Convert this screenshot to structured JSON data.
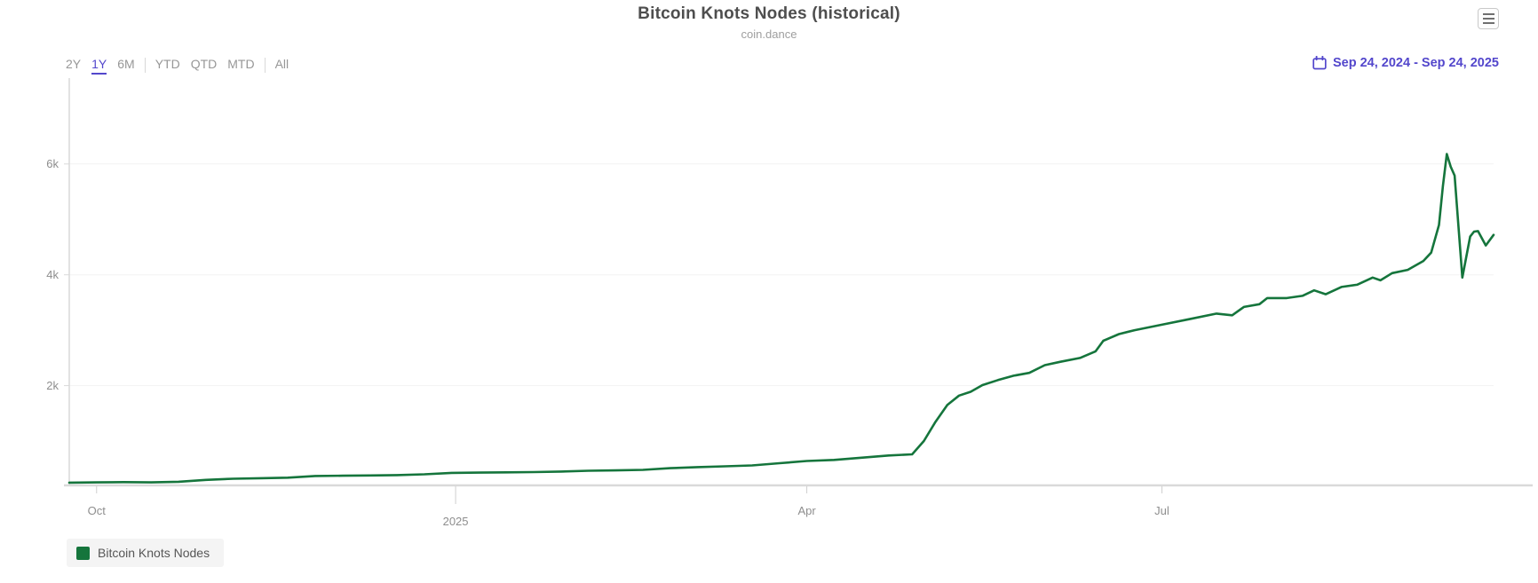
{
  "header": {
    "title": "Bitcoin Knots Nodes (historical)",
    "subtitle": "coin.dance"
  },
  "colors": {
    "accent": "#5347cc",
    "series_green": "#15753c",
    "axis_line": "#d9d9d9",
    "grid_line": "#f2f2f2",
    "tick_line": "#cfcfcf",
    "label_gray": "#8e8e8e"
  },
  "range_selector": {
    "items": [
      {
        "label": "2Y",
        "active": false,
        "group": 1
      },
      {
        "label": "1Y",
        "active": true,
        "group": 1
      },
      {
        "label": "6M",
        "active": false,
        "group": 1
      },
      {
        "label": "YTD",
        "active": false,
        "group": 2
      },
      {
        "label": "QTD",
        "active": false,
        "group": 2
      },
      {
        "label": "MTD",
        "active": false,
        "group": 2
      },
      {
        "label": "All",
        "active": false,
        "group": 3
      }
    ]
  },
  "date_range": {
    "label": "Sep 24, 2024 - Sep 24, 2025"
  },
  "legend": {
    "items": [
      {
        "label": "Bitcoin Knots Nodes",
        "color": "#15753c"
      }
    ]
  },
  "chart_data": {
    "type": "line",
    "title": "Bitcoin Knots Nodes (historical)",
    "subtitle": "coin.dance",
    "xlabel": "",
    "ylabel": "",
    "grid": "horizontal-faint",
    "legend_position": "bottom-left",
    "x_start_date": "2024-09-24",
    "x_end_date": "2025-09-24",
    "xlim_days": [
      0,
      365
    ],
    "ylim": [
      200,
      7550
    ],
    "y_ticks": [
      {
        "label": "2k",
        "value": 2000
      },
      {
        "label": "4k",
        "value": 4000
      },
      {
        "label": "6k",
        "value": 6000
      }
    ],
    "x_ticks": [
      {
        "label": "Oct",
        "date": "2024-10-01",
        "year_tick": false
      },
      {
        "label": "2025",
        "date": "2025-01-01",
        "year_tick": true
      },
      {
        "label": "Apr",
        "date": "2025-04-01",
        "year_tick": false
      },
      {
        "label": "Jul",
        "date": "2025-07-01",
        "year_tick": false
      }
    ],
    "series": [
      {
        "name": "Bitcoin Knots Nodes",
        "color": "#15753c",
        "points": [
          [
            "2024-09-24",
            250
          ],
          [
            "2024-10-01",
            255
          ],
          [
            "2024-10-08",
            260
          ],
          [
            "2024-10-15",
            255
          ],
          [
            "2024-10-22",
            265
          ],
          [
            "2024-10-29",
            300
          ],
          [
            "2024-11-05",
            320
          ],
          [
            "2024-11-12",
            330
          ],
          [
            "2024-11-19",
            340
          ],
          [
            "2024-11-26",
            370
          ],
          [
            "2024-12-03",
            375
          ],
          [
            "2024-12-10",
            380
          ],
          [
            "2024-12-17",
            385
          ],
          [
            "2024-12-24",
            400
          ],
          [
            "2024-12-31",
            425
          ],
          [
            "2025-01-07",
            430
          ],
          [
            "2025-01-14",
            435
          ],
          [
            "2025-01-21",
            440
          ],
          [
            "2025-01-28",
            450
          ],
          [
            "2025-02-04",
            465
          ],
          [
            "2025-02-11",
            470
          ],
          [
            "2025-02-18",
            480
          ],
          [
            "2025-02-25",
            510
          ],
          [
            "2025-03-04",
            530
          ],
          [
            "2025-03-11",
            545
          ],
          [
            "2025-03-18",
            560
          ],
          [
            "2025-03-25",
            600
          ],
          [
            "2025-04-01",
            640
          ],
          [
            "2025-04-08",
            660
          ],
          [
            "2025-04-15",
            700
          ],
          [
            "2025-04-22",
            740
          ],
          [
            "2025-04-28",
            760
          ],
          [
            "2025-05-01",
            1000
          ],
          [
            "2025-05-04",
            1350
          ],
          [
            "2025-05-07",
            1650
          ],
          [
            "2025-05-10",
            1820
          ],
          [
            "2025-05-13",
            1890
          ],
          [
            "2025-05-16",
            2010
          ],
          [
            "2025-05-20",
            2100
          ],
          [
            "2025-05-24",
            2180
          ],
          [
            "2025-05-28",
            2230
          ],
          [
            "2025-06-01",
            2370
          ],
          [
            "2025-06-05",
            2430
          ],
          [
            "2025-06-10",
            2500
          ],
          [
            "2025-06-14",
            2620
          ],
          [
            "2025-06-16",
            2810
          ],
          [
            "2025-06-20",
            2930
          ],
          [
            "2025-06-24",
            3000
          ],
          [
            "2025-07-01",
            3100
          ],
          [
            "2025-07-08",
            3200
          ],
          [
            "2025-07-15",
            3300
          ],
          [
            "2025-07-19",
            3270
          ],
          [
            "2025-07-22",
            3420
          ],
          [
            "2025-07-26",
            3470
          ],
          [
            "2025-07-28",
            3580
          ],
          [
            "2025-08-02",
            3580
          ],
          [
            "2025-08-06",
            3620
          ],
          [
            "2025-08-09",
            3720
          ],
          [
            "2025-08-12",
            3650
          ],
          [
            "2025-08-16",
            3780
          ],
          [
            "2025-08-20",
            3820
          ],
          [
            "2025-08-24",
            3950
          ],
          [
            "2025-08-26",
            3900
          ],
          [
            "2025-08-29",
            4030
          ],
          [
            "2025-09-02",
            4090
          ],
          [
            "2025-09-06",
            4250
          ],
          [
            "2025-09-08",
            4400
          ],
          [
            "2025-09-10",
            4900
          ],
          [
            "2025-09-11",
            5600
          ],
          [
            "2025-09-12",
            6180
          ],
          [
            "2025-09-13",
            5950
          ],
          [
            "2025-09-14",
            5790
          ],
          [
            "2025-09-16",
            3950
          ],
          [
            "2025-09-18",
            4690
          ],
          [
            "2025-09-19",
            4780
          ],
          [
            "2025-09-20",
            4790
          ],
          [
            "2025-09-22",
            4530
          ],
          [
            "2025-09-24",
            4720
          ]
        ]
      }
    ]
  }
}
